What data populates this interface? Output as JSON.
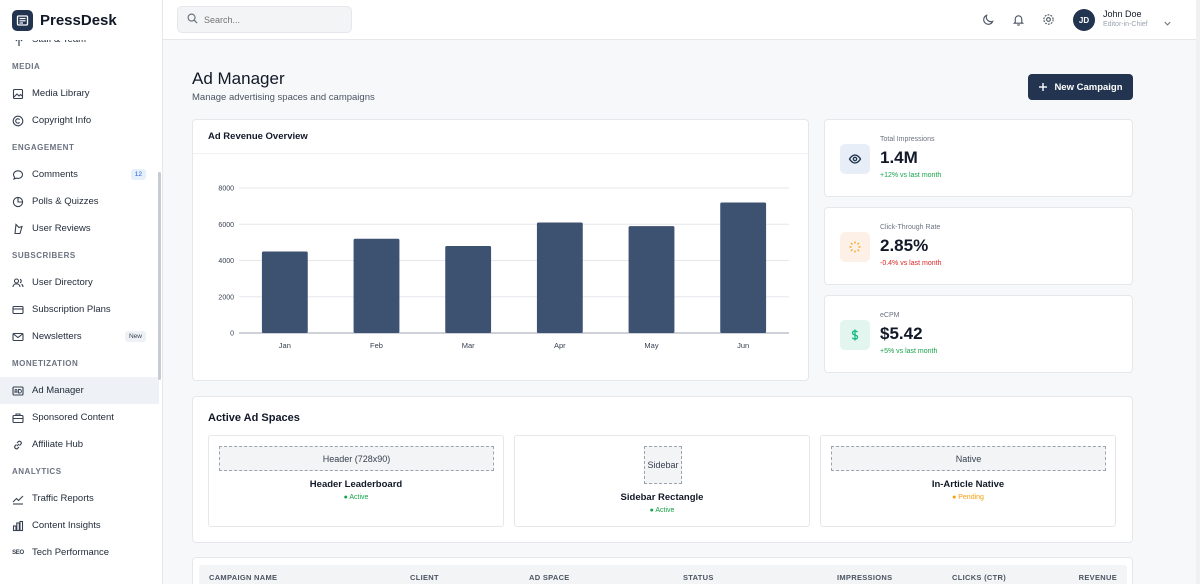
{
  "app": {
    "name": "PressDesk"
  },
  "sidebar": {
    "items": [
      {
        "type": "item",
        "label": "Staff & Team",
        "icon": "users-gear-icon"
      },
      {
        "type": "section",
        "label": "MEDIA"
      },
      {
        "type": "item",
        "label": "Media Library",
        "icon": "image-icon"
      },
      {
        "type": "item",
        "label": "Copyright Info",
        "icon": "copyright-icon"
      },
      {
        "type": "section",
        "label": "ENGAGEMENT"
      },
      {
        "type": "item",
        "label": "Comments",
        "icon": "comment-icon",
        "badge": "12",
        "badge_style": "blue"
      },
      {
        "type": "item",
        "label": "Polls & Quizzes",
        "icon": "poll-icon"
      },
      {
        "type": "item",
        "label": "User Reviews",
        "icon": "star-icon"
      },
      {
        "type": "section",
        "label": "SUBSCRIBERS"
      },
      {
        "type": "item",
        "label": "User Directory",
        "icon": "users-icon"
      },
      {
        "type": "item",
        "label": "Subscription Plans",
        "icon": "card-icon"
      },
      {
        "type": "item",
        "label": "Newsletters",
        "icon": "mail-icon",
        "badge": "New",
        "badge_style": "gray"
      },
      {
        "type": "section",
        "label": "MONETIZATION"
      },
      {
        "type": "item",
        "label": "Ad Manager",
        "icon": "ad-icon",
        "active": true
      },
      {
        "type": "item",
        "label": "Sponsored Content",
        "icon": "briefcase-icon"
      },
      {
        "type": "item",
        "label": "Affiliate Hub",
        "icon": "link-icon"
      },
      {
        "type": "section",
        "label": "ANALYTICS"
      },
      {
        "type": "item",
        "label": "Traffic Reports",
        "icon": "trend-icon"
      },
      {
        "type": "item",
        "label": "Content Insights",
        "icon": "bar-chart-icon"
      },
      {
        "type": "item",
        "label": "Tech Performance",
        "icon": "seo-icon",
        "icon_text": "SEO"
      }
    ]
  },
  "header": {
    "search_placeholder": "Search...",
    "user": {
      "initials": "JD",
      "name": "John Doe",
      "role": "Editor-in-Chief"
    }
  },
  "page": {
    "title": "Ad Manager",
    "subtitle": "Manage advertising spaces and campaigns",
    "new_button": "New Campaign"
  },
  "chart_card": {
    "title": "Ad Revenue Overview"
  },
  "chart_data": {
    "type": "bar",
    "categories": [
      "Jan",
      "Feb",
      "Mar",
      "Apr",
      "May",
      "Jun"
    ],
    "values": [
      4500,
      5200,
      4800,
      6100,
      5900,
      7200
    ],
    "yticks": [
      0,
      2000,
      4000,
      6000,
      8000
    ],
    "ylim": [
      0,
      8000
    ],
    "color": "#3d5170",
    "grid": true
  },
  "stats": [
    {
      "label": "Total Impressions",
      "value": "1.4M",
      "trend": "+12% vs last month",
      "trend_color": "#16a34a",
      "icon": "eye-icon",
      "icon_bg": "#e7eef7",
      "icon_color": "#22344f"
    },
    {
      "label": "Click-Through Rate",
      "value": "2.85%",
      "trend": "-0.4% vs last month",
      "trend_color": "#dc2626",
      "icon": "click-icon",
      "icon_bg": "#fdf0e6",
      "icon_color": "#f59e0b"
    },
    {
      "label": "eCPM",
      "value": "$5.42",
      "trend": "+5% vs last month",
      "trend_color": "#16a34a",
      "icon": "dollar-icon",
      "icon_bg": "#e2f5ef",
      "icon_color": "#10b981"
    }
  ],
  "ad_spaces": {
    "title": "Active Ad Spaces",
    "items": [
      {
        "placeholder": "Header (728x90)",
        "name": "Header Leaderboard",
        "status": "● Active",
        "status_color": "#16a34a"
      },
      {
        "placeholder": "Sidebar",
        "name": "Sidebar Rectangle",
        "status": "● Active",
        "status_color": "#16a34a"
      },
      {
        "placeholder": "Native",
        "name": "In-Article Native",
        "status": "● Pending",
        "status_color": "#f59e0b"
      }
    ]
  },
  "table": {
    "columns": [
      "CAMPAIGN NAME",
      "CLIENT",
      "AD SPACE",
      "STATUS",
      "IMPRESSIONS",
      "CLICKS (CTR)",
      "REVENUE"
    ]
  }
}
